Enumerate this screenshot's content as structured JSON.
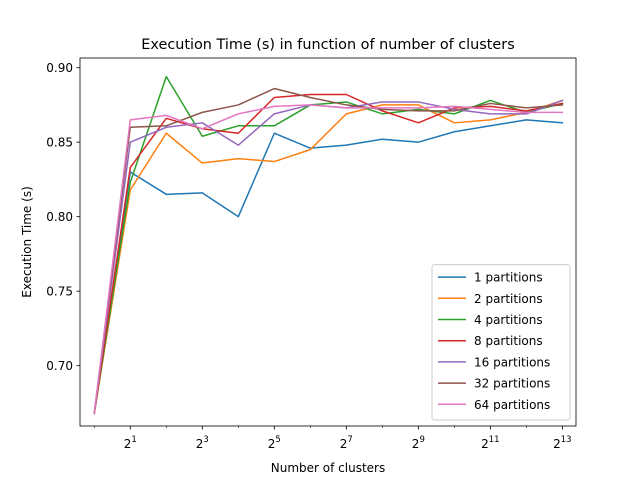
{
  "chart_data": {
    "type": "line",
    "title": "Execution Time (s) in function of number of clusters",
    "xlabel": "Number of clusters",
    "ylabel": "Execution Time (s)",
    "x_scale": "log2",
    "x": [
      1,
      2,
      4,
      8,
      16,
      32,
      64,
      128,
      256,
      512,
      1024,
      2048,
      4096,
      8192
    ],
    "xlim": [
      0.76,
      10650
    ],
    "ylim": [
      0.6595,
      0.9065
    ],
    "xticks": [
      2,
      8,
      32,
      128,
      512,
      2048,
      8192
    ],
    "xtick_labels": [
      {
        "base": "2",
        "exp": "1"
      },
      {
        "base": "2",
        "exp": "3"
      },
      {
        "base": "2",
        "exp": "5"
      },
      {
        "base": "2",
        "exp": "7"
      },
      {
        "base": "2",
        "exp": "9"
      },
      {
        "base": "2",
        "exp": "11"
      },
      {
        "base": "2",
        "exp": "13"
      }
    ],
    "yticks": [
      0.7,
      0.75,
      0.8,
      0.85,
      0.9
    ],
    "ytick_labels": [
      "0.70",
      "0.75",
      "0.80",
      "0.85",
      "0.90"
    ],
    "grid": false,
    "legend_position": "lower right",
    "series": [
      {
        "name": "1 partitions",
        "color": "#1f77b4",
        "values": [
          0.668,
          0.83,
          0.815,
          0.816,
          0.8,
          0.856,
          0.846,
          0.848,
          0.852,
          0.85,
          0.857,
          0.861,
          0.865,
          0.863
        ]
      },
      {
        "name": "2 partitions",
        "color": "#ff7f0e",
        "values": [
          0.668,
          0.818,
          0.856,
          0.836,
          0.839,
          0.837,
          0.845,
          0.869,
          0.875,
          0.875,
          0.863,
          0.865,
          0.87,
          0.878
        ]
      },
      {
        "name": "4 partitions",
        "color": "#2ca02c",
        "values": [
          0.668,
          0.823,
          0.894,
          0.854,
          0.861,
          0.861,
          0.875,
          0.877,
          0.869,
          0.872,
          0.869,
          0.878,
          0.87,
          0.876
        ]
      },
      {
        "name": "8 partitions",
        "color": "#d62728",
        "values": [
          0.668,
          0.833,
          0.866,
          0.859,
          0.856,
          0.88,
          0.882,
          0.882,
          0.871,
          0.863,
          0.873,
          0.874,
          0.871,
          0.876
        ]
      },
      {
        "name": "16 partitions",
        "color": "#9467bd",
        "values": [
          0.668,
          0.85,
          0.86,
          0.863,
          0.848,
          0.869,
          0.875,
          0.873,
          0.877,
          0.877,
          0.872,
          0.869,
          0.869,
          0.878
        ]
      },
      {
        "name": "32 partitions",
        "color": "#8c564b",
        "values": [
          0.668,
          0.86,
          0.861,
          0.87,
          0.875,
          0.886,
          0.88,
          0.875,
          0.872,
          0.871,
          0.871,
          0.876,
          0.873,
          0.875
        ]
      },
      {
        "name": "64 partitions",
        "color": "#e377c2",
        "values": [
          0.668,
          0.865,
          0.868,
          0.859,
          0.869,
          0.874,
          0.875,
          0.873,
          0.873,
          0.873,
          0.874,
          0.872,
          0.87,
          0.87
        ]
      }
    ]
  }
}
